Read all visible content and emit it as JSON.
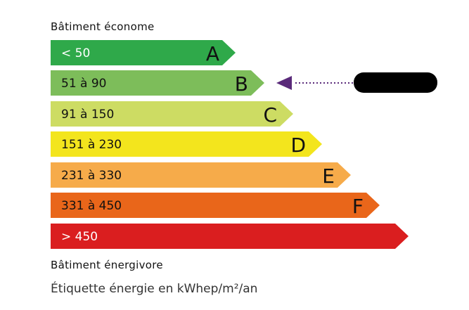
{
  "header": {
    "top_label": "Bâtiment économe",
    "bottom_label": "Bâtiment énergivore"
  },
  "footer": {
    "unit_text": "Étiquette énergie en kWhep/m²/an"
  },
  "classes": [
    {
      "range": "< 50",
      "letter": "A",
      "color": "#2fa94a",
      "text_color": "#ffffff"
    },
    {
      "range": "51 à 90",
      "letter": "B",
      "color": "#7dbd5a",
      "text_color": "#111111"
    },
    {
      "range": "91 à 150",
      "letter": "C",
      "color": "#cddc63",
      "text_color": "#111111"
    },
    {
      "range": "151 à 230",
      "letter": "D",
      "color": "#f3e51d",
      "text_color": "#111111"
    },
    {
      "range": "231 à 330",
      "letter": "E",
      "color": "#f6ab4a",
      "text_color": "#111111"
    },
    {
      "range": "331 à 450",
      "letter": "F",
      "color": "#e9661a",
      "text_color": "#111111"
    },
    {
      "range": "> 450",
      "letter": "",
      "color": "#da1e1f",
      "text_color": "#ffffff"
    }
  ],
  "indicator": {
    "class": "B",
    "color": "#5a2a7a",
    "value_redacted": true
  }
}
